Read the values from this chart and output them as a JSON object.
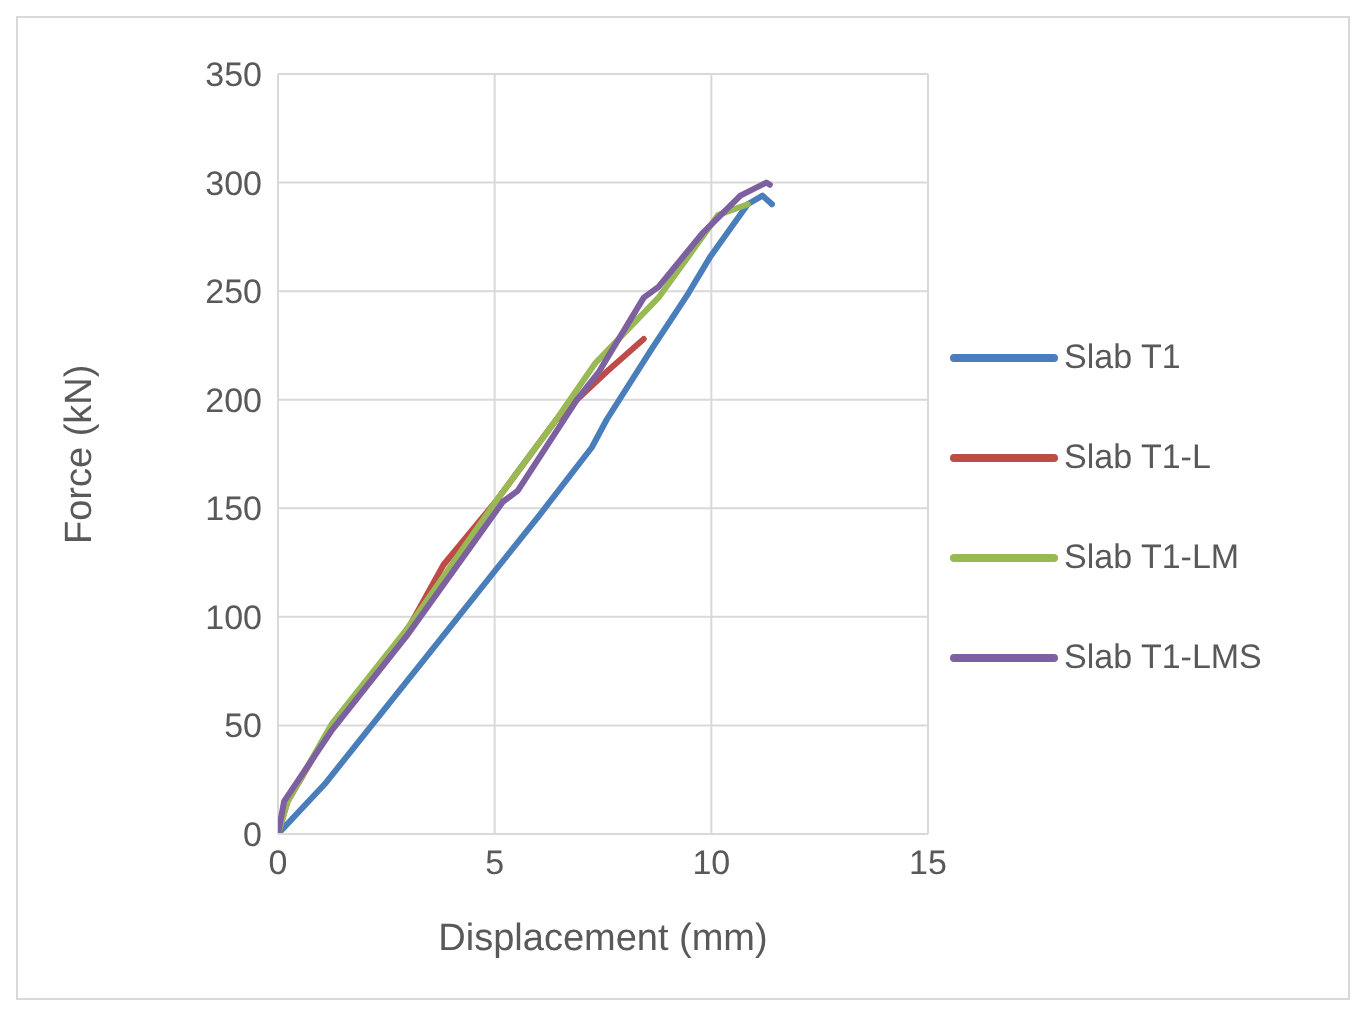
{
  "chart_data": {
    "type": "line",
    "xlabel": "Displacement (mm)",
    "ylabel": "Force (kN)",
    "xlim": [
      0,
      15
    ],
    "xticks": [
      0,
      5,
      10,
      15
    ],
    "ylim": [
      0,
      350
    ],
    "yticks": [
      0,
      50,
      100,
      150,
      200,
      250,
      300,
      350
    ],
    "grid": true,
    "legend": "right",
    "marker": "none",
    "line_style": "solid",
    "series": [
      {
        "name": "Slab T1",
        "color": "#4a7ebb",
        "x": [
          0,
          1.08,
          4.16,
          6.04,
          7.24,
          7.59,
          8.61,
          9.47,
          9.98,
          10.84,
          11.18,
          11.4
        ],
        "values": [
          0,
          23,
          100,
          147,
          178,
          191,
          223,
          249,
          266,
          290,
          294,
          290
        ]
      },
      {
        "name": "Slab T1-L",
        "color": "#be4b48",
        "x": [
          0,
          0.22,
          1.25,
          2.96,
          3.82,
          5.02,
          6.39,
          6.9,
          7.59,
          8.44
        ],
        "values": [
          0,
          15,
          50,
          93,
          124,
          153,
          190,
          200,
          213,
          228
        ]
      },
      {
        "name": "Slab T1-LM",
        "color": "#98b954",
        "x": [
          0,
          0.22,
          1.25,
          2.96,
          5.02,
          6.39,
          7.33,
          8.78,
          9.47,
          10.15,
          10.84
        ],
        "values": [
          0,
          15,
          51,
          94,
          153,
          190,
          217,
          247,
          266,
          285,
          290
        ]
      },
      {
        "name": "Slab T1-LMS",
        "color": "#7d60a0",
        "x": [
          0,
          0.14,
          1.25,
          2.96,
          5.19,
          5.53,
          6.9,
          7.41,
          8.44,
          8.78,
          9.81,
          10.67,
          11.27,
          11.35
        ],
        "values": [
          0,
          15,
          48,
          91,
          153,
          158,
          200,
          213,
          247,
          252,
          277,
          294,
          300,
          299
        ]
      }
    ]
  }
}
